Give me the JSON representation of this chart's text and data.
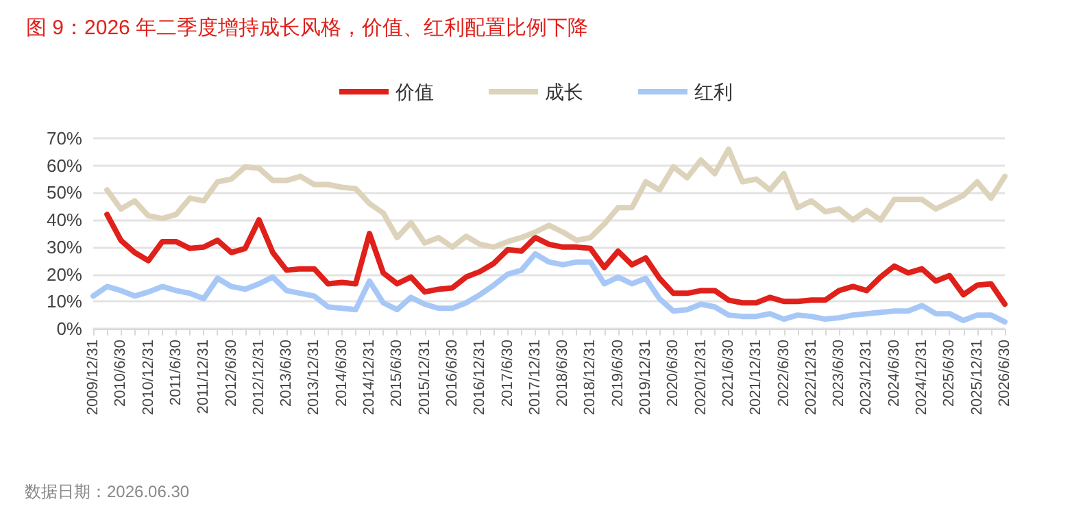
{
  "chart_data": {
    "type": "line",
    "title": "图 9：2026 年二季度增持成长风格，价值、红利配置比例下降",
    "categories": [
      "2009/12/31",
      null,
      "2010/6/30",
      null,
      "2010/12/31",
      null,
      "2011/6/30",
      null,
      "2011/12/31",
      null,
      "2012/6/30",
      null,
      "2012/12/31",
      null,
      "2013/6/30",
      null,
      "2013/12/31",
      null,
      "2014/6/30",
      null,
      "2014/12/31",
      null,
      "2015/6/30",
      null,
      "2015/12/31",
      null,
      "2016/6/30",
      null,
      "2016/12/31",
      null,
      "2017/6/30",
      null,
      "2017/12/31",
      null,
      "2018/6/30",
      null,
      "2018/12/31",
      null,
      "2019/6/30",
      null,
      "2019/12/31",
      null,
      "2020/6/30",
      null,
      "2020/12/31",
      null,
      "2021/6/30",
      null,
      "2021/12/31",
      null,
      "2022/6/30",
      null,
      "2022/12/31",
      null,
      "2023/6/30",
      null,
      "2023/12/31",
      null,
      "2024/6/30",
      null,
      "2024/12/31",
      null,
      "2025/6/30",
      null,
      "2025/12/31",
      null,
      "2026/6/30"
    ],
    "series": [
      {
        "name": "价值",
        "color": "#e0201a",
        "values": [
          null,
          42,
          32.5,
          28,
          25,
          32,
          32,
          29.5,
          30,
          32.5,
          28,
          29.5,
          40,
          28,
          21.5,
          22,
          22,
          16.5,
          17,
          16.5,
          35,
          20.5,
          16.5,
          19,
          13.5,
          14.5,
          15,
          19,
          21,
          24,
          29,
          28.5,
          33.5,
          31,
          30,
          30,
          29.5,
          22.5,
          28.5,
          23.5,
          26,
          18.5,
          13,
          13,
          14,
          14,
          10.5,
          9.5,
          9.5,
          11.5,
          10,
          10,
          10.5,
          10.5,
          14,
          15.5,
          14,
          19,
          23,
          20.5,
          22,
          17.5,
          19.5,
          12.5,
          16,
          16.5,
          9
        ]
      },
      {
        "name": "成长",
        "color": "#ddd3bb",
        "values": [
          null,
          51,
          44,
          47,
          41.5,
          40.5,
          42,
          48,
          47,
          54,
          55,
          59.5,
          59,
          54.5,
          54.5,
          56,
          53,
          53,
          52,
          51.5,
          46,
          42.5,
          33.5,
          39,
          31.5,
          33.5,
          30,
          34,
          31,
          30,
          32,
          33.5,
          35.5,
          38,
          35.5,
          32.5,
          33.5,
          38.5,
          44.5,
          44.5,
          54,
          51,
          59.5,
          55.5,
          62,
          57,
          66,
          54,
          55,
          51,
          57,
          44.5,
          47,
          43,
          44,
          40,
          43.5,
          40,
          47.5,
          47.5,
          47.5,
          44,
          46.5,
          49,
          54,
          48,
          56
        ]
      },
      {
        "name": "红利",
        "color": "#a7c8f7",
        "values": [
          12,
          15.5,
          14,
          12,
          13.5,
          15.5,
          14,
          13,
          11,
          18.5,
          15.5,
          14.5,
          16.5,
          19,
          14,
          13,
          12,
          8,
          7.5,
          7,
          17.5,
          9.5,
          7,
          11.5,
          9,
          7.5,
          7.5,
          9.5,
          12.5,
          16,
          20,
          21.5,
          27.5,
          24.5,
          23.5,
          24.5,
          24.5,
          16.5,
          19,
          16.5,
          18.5,
          11,
          6.5,
          7,
          9,
          8,
          5,
          4.5,
          4.5,
          5.5,
          3.5,
          5,
          4.5,
          3.5,
          4,
          5,
          5.5,
          6,
          6.5,
          6.5,
          8.5,
          5.5,
          5.5,
          3,
          5,
          5,
          2.5
        ]
      }
    ],
    "ylim": [
      0,
      70
    ],
    "yticks": [
      {
        "value": 0,
        "label": "0%"
      },
      {
        "value": 10,
        "label": "10%"
      },
      {
        "value": 20,
        "label": "20%"
      },
      {
        "value": 30,
        "label": "30%"
      },
      {
        "value": 40,
        "label": "40%"
      },
      {
        "value": 50,
        "label": "50%"
      },
      {
        "value": 60,
        "label": "60%"
      },
      {
        "value": 70,
        "label": "70%"
      }
    ],
    "grid": "y",
    "legend": "top",
    "marker": "none",
    "line_style": "solid",
    "annotations": [
      "数据日期：2026.06.30"
    ]
  }
}
